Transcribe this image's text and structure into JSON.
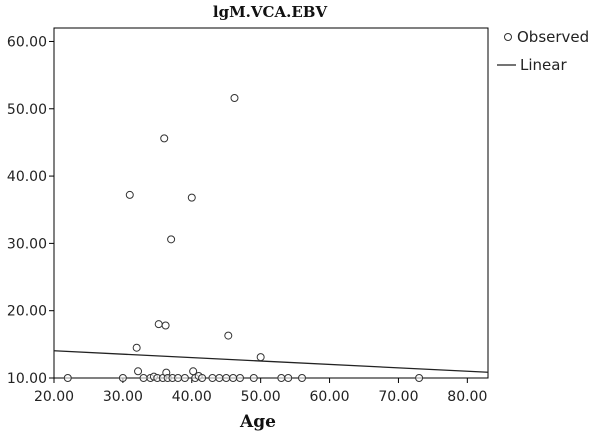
{
  "chart_data": {
    "type": "scatter",
    "title": "lgM.VCA.EBV",
    "xlabel": "Age",
    "ylabel": "",
    "xlim": [
      20,
      83
    ],
    "ylim": [
      10,
      62
    ],
    "x_ticks": [
      "20.00",
      "30.00",
      "40.00",
      "50.00",
      "60.00",
      "70.00",
      "80.00"
    ],
    "x_tick_values": [
      20,
      30,
      40,
      50,
      60,
      70,
      80
    ],
    "y_ticks": [
      "10.00",
      "20.00",
      "30.00",
      "40.00",
      "50.00",
      "60.00"
    ],
    "y_tick_values": [
      10,
      20,
      30,
      40,
      50,
      60
    ],
    "grid": false,
    "legend_position": "top-right-outside",
    "series": [
      {
        "name": "Observed",
        "marker": "open-circle",
        "points": [
          [
            22,
            10
          ],
          [
            30,
            10
          ],
          [
            31,
            37.2
          ],
          [
            32,
            14.5
          ],
          [
            32.2,
            11
          ],
          [
            33,
            10
          ],
          [
            34,
            10
          ],
          [
            34.5,
            10.2
          ],
          [
            35,
            10
          ],
          [
            35.2,
            18
          ],
          [
            35.8,
            10
          ],
          [
            36,
            45.6
          ],
          [
            36.2,
            17.8
          ],
          [
            36.3,
            10.8
          ],
          [
            36.5,
            10
          ],
          [
            37,
            30.6
          ],
          [
            37.2,
            10
          ],
          [
            38,
            10
          ],
          [
            39,
            10
          ],
          [
            40,
            36.8
          ],
          [
            40.2,
            11
          ],
          [
            40.5,
            10
          ],
          [
            41,
            10.3
          ],
          [
            41.5,
            10
          ],
          [
            43,
            10
          ],
          [
            44,
            10
          ],
          [
            45,
            10
          ],
          [
            45.3,
            16.3
          ],
          [
            46,
            10
          ],
          [
            46.2,
            51.6
          ],
          [
            47,
            10
          ],
          [
            49,
            10
          ],
          [
            50,
            13.1
          ],
          [
            53,
            10
          ],
          [
            54,
            10
          ],
          [
            56,
            10
          ],
          [
            73,
            10
          ]
        ]
      },
      {
        "name": "Linear",
        "type": "line",
        "points": [
          [
            20,
            14.05
          ],
          [
            83,
            10.85
          ]
        ]
      }
    ]
  }
}
